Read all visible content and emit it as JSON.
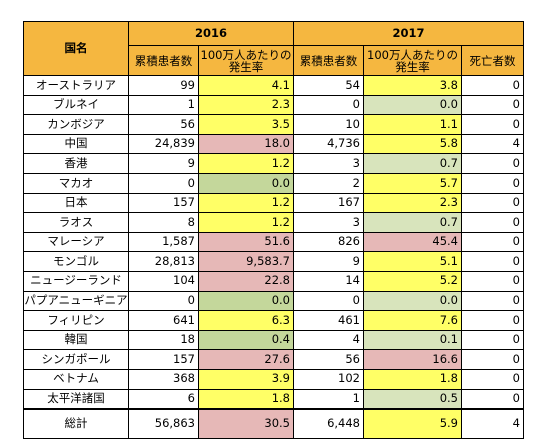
{
  "headers": {
    "country": "国名",
    "year1": "2016",
    "year2": "2017",
    "cumulative": "累積患者数",
    "rate": "100万人あたりの発生率",
    "deaths": "死亡者数"
  },
  "rows": [
    {
      "name": "オーストラリア",
      "c16": "99",
      "r16": "4.1",
      "c17": "54",
      "r17": "3.8",
      "d": "0"
    },
    {
      "name": "ブルネイ",
      "c16": "1",
      "r16": "2.3",
      "c17": "0",
      "r17": "0.0",
      "d": "0"
    },
    {
      "name": "カンボジア",
      "c16": "56",
      "r16": "3.5",
      "c17": "10",
      "r17": "1.1",
      "d": "0"
    },
    {
      "name": "中国",
      "c16": "24,839",
      "r16": "18.0",
      "c17": "4,736",
      "r17": "5.8",
      "d": "4"
    },
    {
      "name": "香港",
      "c16": "9",
      "r16": "1.2",
      "c17": "3",
      "r17": "0.7",
      "d": "0"
    },
    {
      "name": "マカオ",
      "c16": "0",
      "r16": "0.0",
      "c17": "2",
      "r17": "5.7",
      "d": "0"
    },
    {
      "name": "日本",
      "c16": "157",
      "r16": "1.2",
      "c17": "167",
      "r17": "2.3",
      "d": "0"
    },
    {
      "name": "ラオス",
      "c16": "8",
      "r16": "1.2",
      "c17": "3",
      "r17": "0.7",
      "d": "0"
    },
    {
      "name": "マレーシア",
      "c16": "1,587",
      "r16": "51.6",
      "c17": "826",
      "r17": "45.4",
      "d": "0"
    },
    {
      "name": "モンゴル",
      "c16": "28,813",
      "r16": "9,583.7",
      "c17": "9",
      "r17": "5.1",
      "d": "0"
    },
    {
      "name": "ニュージーランド",
      "c16": "104",
      "r16": "22.8",
      "c17": "14",
      "r17": "5.2",
      "d": "0"
    },
    {
      "name": "パプアニューギニア",
      "c16": "0",
      "r16": "0.0",
      "c17": "0",
      "r17": "0.0",
      "d": "0"
    },
    {
      "name": "フィリピン",
      "c16": "641",
      "r16": "6.3",
      "c17": "461",
      "r17": "7.6",
      "d": "0"
    },
    {
      "name": "韓国",
      "c16": "18",
      "r16": "0.4",
      "c17": "4",
      "r17": "0.1",
      "d": "0"
    },
    {
      "name": "シンガポール",
      "c16": "157",
      "r16": "27.6",
      "c17": "56",
      "r17": "16.6",
      "d": "0"
    },
    {
      "name": "ベトナム",
      "c16": "368",
      "r16": "3.9",
      "c17": "102",
      "r17": "1.8",
      "d": "0"
    },
    {
      "name": "太平洋諸国",
      "c16": "6",
      "r16": "1.8",
      "c17": "1",
      "r17": "0.5",
      "d": "0"
    }
  ],
  "total": {
    "name": "総計",
    "c16": "56,863",
    "r16": "30.5",
    "c17": "6,448",
    "r17": "5.9",
    "d": "4"
  },
  "colors": {
    "header": "#f5b740",
    "yellow": "#ffff66",
    "green_light": "#d8e4bc",
    "green": "#c4d79b",
    "red": "#e6b8b7"
  }
}
